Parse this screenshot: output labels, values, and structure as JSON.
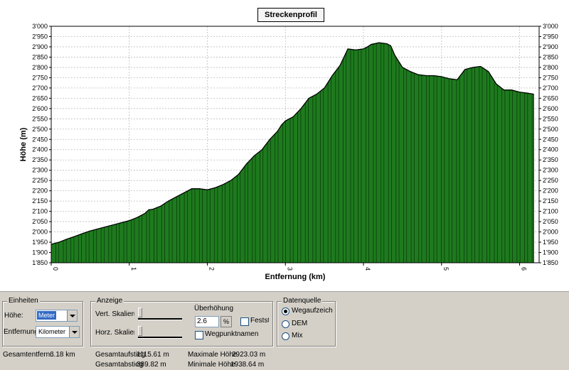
{
  "chart_data": {
    "type": "area",
    "title": "Streckenprofil",
    "xlabel": "Entfernung (km)",
    "ylabel": "Höhe (m)",
    "xlim": [
      0,
      6.25
    ],
    "ylim": [
      1850,
      3000
    ],
    "yticks": [
      1850,
      1900,
      1950,
      2000,
      2050,
      2100,
      2150,
      2200,
      2250,
      2300,
      2350,
      2400,
      2450,
      2500,
      2550,
      2600,
      2650,
      2700,
      2750,
      2800,
      2850,
      2900,
      2950,
      3000
    ],
    "ytick_labels": [
      "1'850",
      "1'900",
      "1'950",
      "2'000",
      "2'050",
      "2'100",
      "2'150",
      "2'200",
      "2'250",
      "2'300",
      "2'350",
      "2'400",
      "2'450",
      "2'500",
      "2'550",
      "2'600",
      "2'650",
      "2'700",
      "2'750",
      "2'800",
      "2'850",
      "2'900",
      "2'950",
      "3'000"
    ],
    "xticks": [
      0,
      1,
      2,
      3,
      4,
      5,
      6
    ],
    "xtick_labels": [
      "0",
      "1",
      "2",
      "3",
      "4",
      "5",
      "6"
    ],
    "grid": true,
    "fill_color": "#1e7a1e",
    "x": [
      0,
      0.1,
      0.2,
      0.3,
      0.4,
      0.5,
      0.6,
      0.7,
      0.8,
      0.9,
      1.0,
      1.1,
      1.2,
      1.25,
      1.3,
      1.4,
      1.5,
      1.6,
      1.7,
      1.8,
      1.9,
      2.0,
      2.1,
      2.2,
      2.3,
      2.4,
      2.5,
      2.6,
      2.7,
      2.8,
      2.9,
      2.95,
      3.0,
      3.05,
      3.1,
      3.2,
      3.3,
      3.4,
      3.5,
      3.6,
      3.7,
      3.8,
      3.9,
      4.0,
      4.05,
      4.1,
      4.2,
      4.3,
      4.35,
      4.4,
      4.5,
      4.6,
      4.7,
      4.8,
      4.9,
      5.0,
      5.1,
      5.2,
      5.3,
      5.4,
      5.5,
      5.6,
      5.7,
      5.8,
      5.9,
      6.0,
      6.1,
      6.18
    ],
    "y": [
      1940,
      1950,
      1965,
      1978,
      1992,
      2005,
      2015,
      2025,
      2035,
      2045,
      2055,
      2070,
      2090,
      2108,
      2110,
      2125,
      2150,
      2170,
      2190,
      2210,
      2210,
      2205,
      2215,
      2230,
      2250,
      2280,
      2330,
      2370,
      2400,
      2450,
      2490,
      2520,
      2540,
      2550,
      2560,
      2600,
      2650,
      2670,
      2700,
      2760,
      2810,
      2890,
      2885,
      2890,
      2900,
      2912,
      2920,
      2915,
      2905,
      2860,
      2800,
      2780,
      2765,
      2760,
      2760,
      2755,
      2745,
      2740,
      2790,
      2800,
      2805,
      2780,
      2720,
      2690,
      2690,
      2680,
      2675,
      2670
    ]
  },
  "panel": {
    "einheiten": {
      "title": "Einheiten",
      "hoehe_label": "Höhe:",
      "hoehe_value": "Meter",
      "entfernung_label": "Entfernung:",
      "entfernung_value": "Kilometer"
    },
    "anzeige": {
      "title": "Anzeige",
      "vert_label": "Vert. Skalierung",
      "horz_label": "Horz. Skalierung",
      "ueberhoehung_label": "Überhöhung",
      "ueberhoehung_value": "2.6",
      "spin_label": "%",
      "fest_label": "Feststellen",
      "wegpunkt_label": "Wegpunktnamen"
    },
    "datenquelle": {
      "title": "Datenquelle",
      "opt1": "Wegaufzeichnung",
      "opt2": "DEM",
      "opt3": "Mix"
    }
  },
  "stats": {
    "gesamtentfernung_label": "Gesamtentfern.:",
    "gesamtentfernung_value": "6.18 km",
    "aufstieg_label": "Gesamtaufstieg",
    "aufstieg_value": "1115.61 m",
    "abstieg_label": "Gesamtabstieg",
    "abstieg_value": "389.82 m",
    "max_label": "Maximale Höhe",
    "max_value": "2923.03 m",
    "min_label": "Minimale Höhe",
    "min_value": "1938.64 m"
  }
}
